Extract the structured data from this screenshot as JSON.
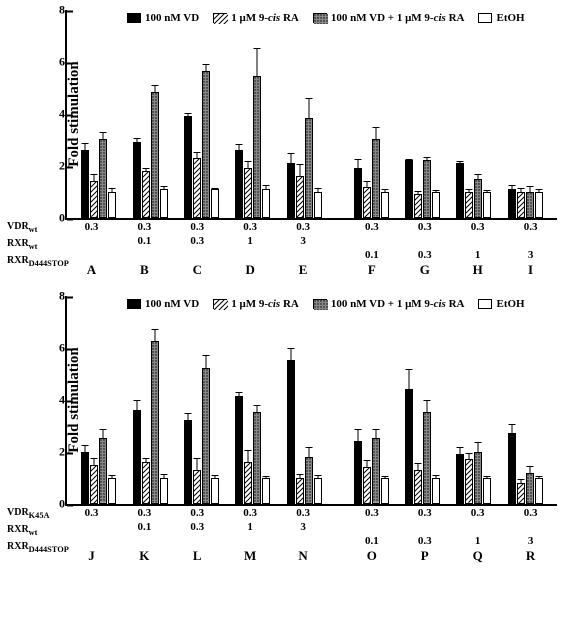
{
  "global": {
    "y_label": "Fold stimulation",
    "y_max": 8,
    "y_ticks": [
      0,
      2,
      4,
      6,
      8
    ],
    "series": [
      {
        "key": "vd",
        "label_html": "100 nM VD",
        "fill": "#000000"
      },
      {
        "key": "ra",
        "label_html": "1 μM 9-<i>cis</i> RA",
        "fill": "url(#hatch)"
      },
      {
        "key": "combo",
        "label_html": "100 nM VD + 1 μM 9-<i>cis</i> RA",
        "fill": "url(#dots)"
      },
      {
        "key": "etoh",
        "label_html": "EtOH",
        "fill": "#ffffff"
      }
    ],
    "row_headers_top": [
      "VDR<sub>wt</sub>",
      "RXR<sub>wt</sub>",
      "RXR<sub>D444STOP</sub>"
    ],
    "row_headers_bottom": [
      "VDR<sub>K45A</sub>",
      "RXR<sub>wt</sub>",
      "RXR<sub>D444STOP</sub>"
    ]
  },
  "top": {
    "groups": [
      {
        "letter": "A",
        "vd": 2.6,
        "vd_e": 0.3,
        "ra": 1.4,
        "ra_e": 0.3,
        "combo": 3.0,
        "combo_e": 0.3,
        "etoh": 1.0,
        "etoh_e": 0.2,
        "r1": "0.3",
        "r2": "",
        "r3": ""
      },
      {
        "letter": "B",
        "vd": 2.9,
        "vd_e": 0.2,
        "ra": 1.8,
        "ra_e": 0.15,
        "combo": 4.8,
        "combo_e": 0.3,
        "etoh": 1.1,
        "etoh_e": 0.15,
        "r1": "0.3",
        "r2": "0.1",
        "r3": ""
      },
      {
        "letter": "C",
        "vd": 3.9,
        "vd_e": 0.15,
        "ra": 2.3,
        "ra_e": 0.25,
        "combo": 5.6,
        "combo_e": 0.3,
        "etoh": 1.1,
        "etoh_e": 0.1,
        "r1": "0.3",
        "r2": "0.3",
        "r3": ""
      },
      {
        "letter": "D",
        "vd": 2.6,
        "vd_e": 0.25,
        "ra": 1.9,
        "ra_e": 0.3,
        "combo": 5.4,
        "combo_e": 1.1,
        "etoh": 1.1,
        "etoh_e": 0.2,
        "r1": "0.3",
        "r2": "1",
        "r3": ""
      },
      {
        "letter": "E",
        "vd": 2.1,
        "vd_e": 0.4,
        "ra": 1.6,
        "ra_e": 0.5,
        "combo": 3.8,
        "combo_e": 0.8,
        "etoh": 1.0,
        "etoh_e": 0.2,
        "r1": "0.3",
        "r2": "3",
        "r3": ""
      },
      {
        "letter": "F",
        "vd": 1.9,
        "vd_e": 0.4,
        "ra": 1.2,
        "ra_e": 0.25,
        "combo": 3.0,
        "combo_e": 0.5,
        "etoh": 1.0,
        "etoh_e": 0.15,
        "r1": "0.3",
        "r2": "",
        "r3": "0.1"
      },
      {
        "letter": "G",
        "vd": 2.2,
        "vd_e": 0.1,
        "ra": 0.9,
        "ra_e": 0.15,
        "combo": 2.2,
        "combo_e": 0.15,
        "etoh": 1.0,
        "etoh_e": 0.1,
        "r1": "0.3",
        "r2": "",
        "r3": "0.3"
      },
      {
        "letter": "H",
        "vd": 2.1,
        "vd_e": 0.1,
        "ra": 1.0,
        "ra_e": 0.15,
        "combo": 1.5,
        "combo_e": 0.2,
        "etoh": 1.0,
        "etoh_e": 0.1,
        "r1": "0.3",
        "r2": "",
        "r3": "1"
      },
      {
        "letter": "I",
        "vd": 1.1,
        "vd_e": 0.2,
        "ra": 1.0,
        "ra_e": 0.2,
        "combo": 1.0,
        "combo_e": 0.25,
        "etoh": 1.0,
        "etoh_e": 0.15,
        "r1": "0.3",
        "r2": "",
        "r3": "3"
      }
    ]
  },
  "bottom": {
    "groups": [
      {
        "letter": "J",
        "vd": 2.0,
        "vd_e": 0.3,
        "ra": 1.5,
        "ra_e": 0.3,
        "combo": 2.5,
        "combo_e": 0.4,
        "etoh": 1.0,
        "etoh_e": 0.15,
        "r1": "0.3",
        "r2": "",
        "r3": ""
      },
      {
        "letter": "K",
        "vd": 3.6,
        "vd_e": 0.4,
        "ra": 1.6,
        "ra_e": 0.2,
        "combo": 6.2,
        "combo_e": 0.5,
        "etoh": 1.0,
        "etoh_e": 0.2,
        "r1": "0.3",
        "r2": "0.1",
        "r3": ""
      },
      {
        "letter": "L",
        "vd": 3.2,
        "vd_e": 0.3,
        "ra": 1.3,
        "ra_e": 0.5,
        "combo": 5.2,
        "combo_e": 0.5,
        "etoh": 1.0,
        "etoh_e": 0.15,
        "r1": "0.3",
        "r2": "0.3",
        "r3": ""
      },
      {
        "letter": "M",
        "vd": 4.1,
        "vd_e": 0.2,
        "ra": 1.6,
        "ra_e": 0.5,
        "combo": 3.5,
        "combo_e": 0.3,
        "etoh": 1.0,
        "etoh_e": 0.1,
        "r1": "0.3",
        "r2": "1",
        "r3": ""
      },
      {
        "letter": "N",
        "vd": 5.5,
        "vd_e": 0.5,
        "ra": 1.0,
        "ra_e": 0.2,
        "combo": 1.8,
        "combo_e": 0.4,
        "etoh": 1.0,
        "etoh_e": 0.15,
        "r1": "0.3",
        "r2": "3",
        "r3": ""
      },
      {
        "letter": "O",
        "vd": 2.4,
        "vd_e": 0.5,
        "ra": 1.4,
        "ra_e": 0.3,
        "combo": 2.5,
        "combo_e": 0.4,
        "etoh": 1.0,
        "etoh_e": 0.1,
        "r1": "0.3",
        "r2": "",
        "r3": "0.1"
      },
      {
        "letter": "P",
        "vd": 4.4,
        "vd_e": 0.8,
        "ra": 1.3,
        "ra_e": 0.3,
        "combo": 3.5,
        "combo_e": 0.5,
        "etoh": 1.0,
        "etoh_e": 0.15,
        "r1": "0.3",
        "r2": "",
        "r3": "0.3"
      },
      {
        "letter": "Q",
        "vd": 1.9,
        "vd_e": 0.3,
        "ra": 1.7,
        "ra_e": 0.3,
        "combo": 2.0,
        "combo_e": 0.4,
        "etoh": 1.0,
        "etoh_e": 0.1,
        "r1": "0.3",
        "r2": "",
        "r3": "1"
      },
      {
        "letter": "R",
        "vd": 2.7,
        "vd_e": 0.4,
        "ra": 0.8,
        "ra_e": 0.2,
        "combo": 1.2,
        "combo_e": 0.3,
        "etoh": 1.0,
        "etoh_e": 0.1,
        "r1": "0.3",
        "r2": "",
        "r3": "3"
      }
    ]
  }
}
